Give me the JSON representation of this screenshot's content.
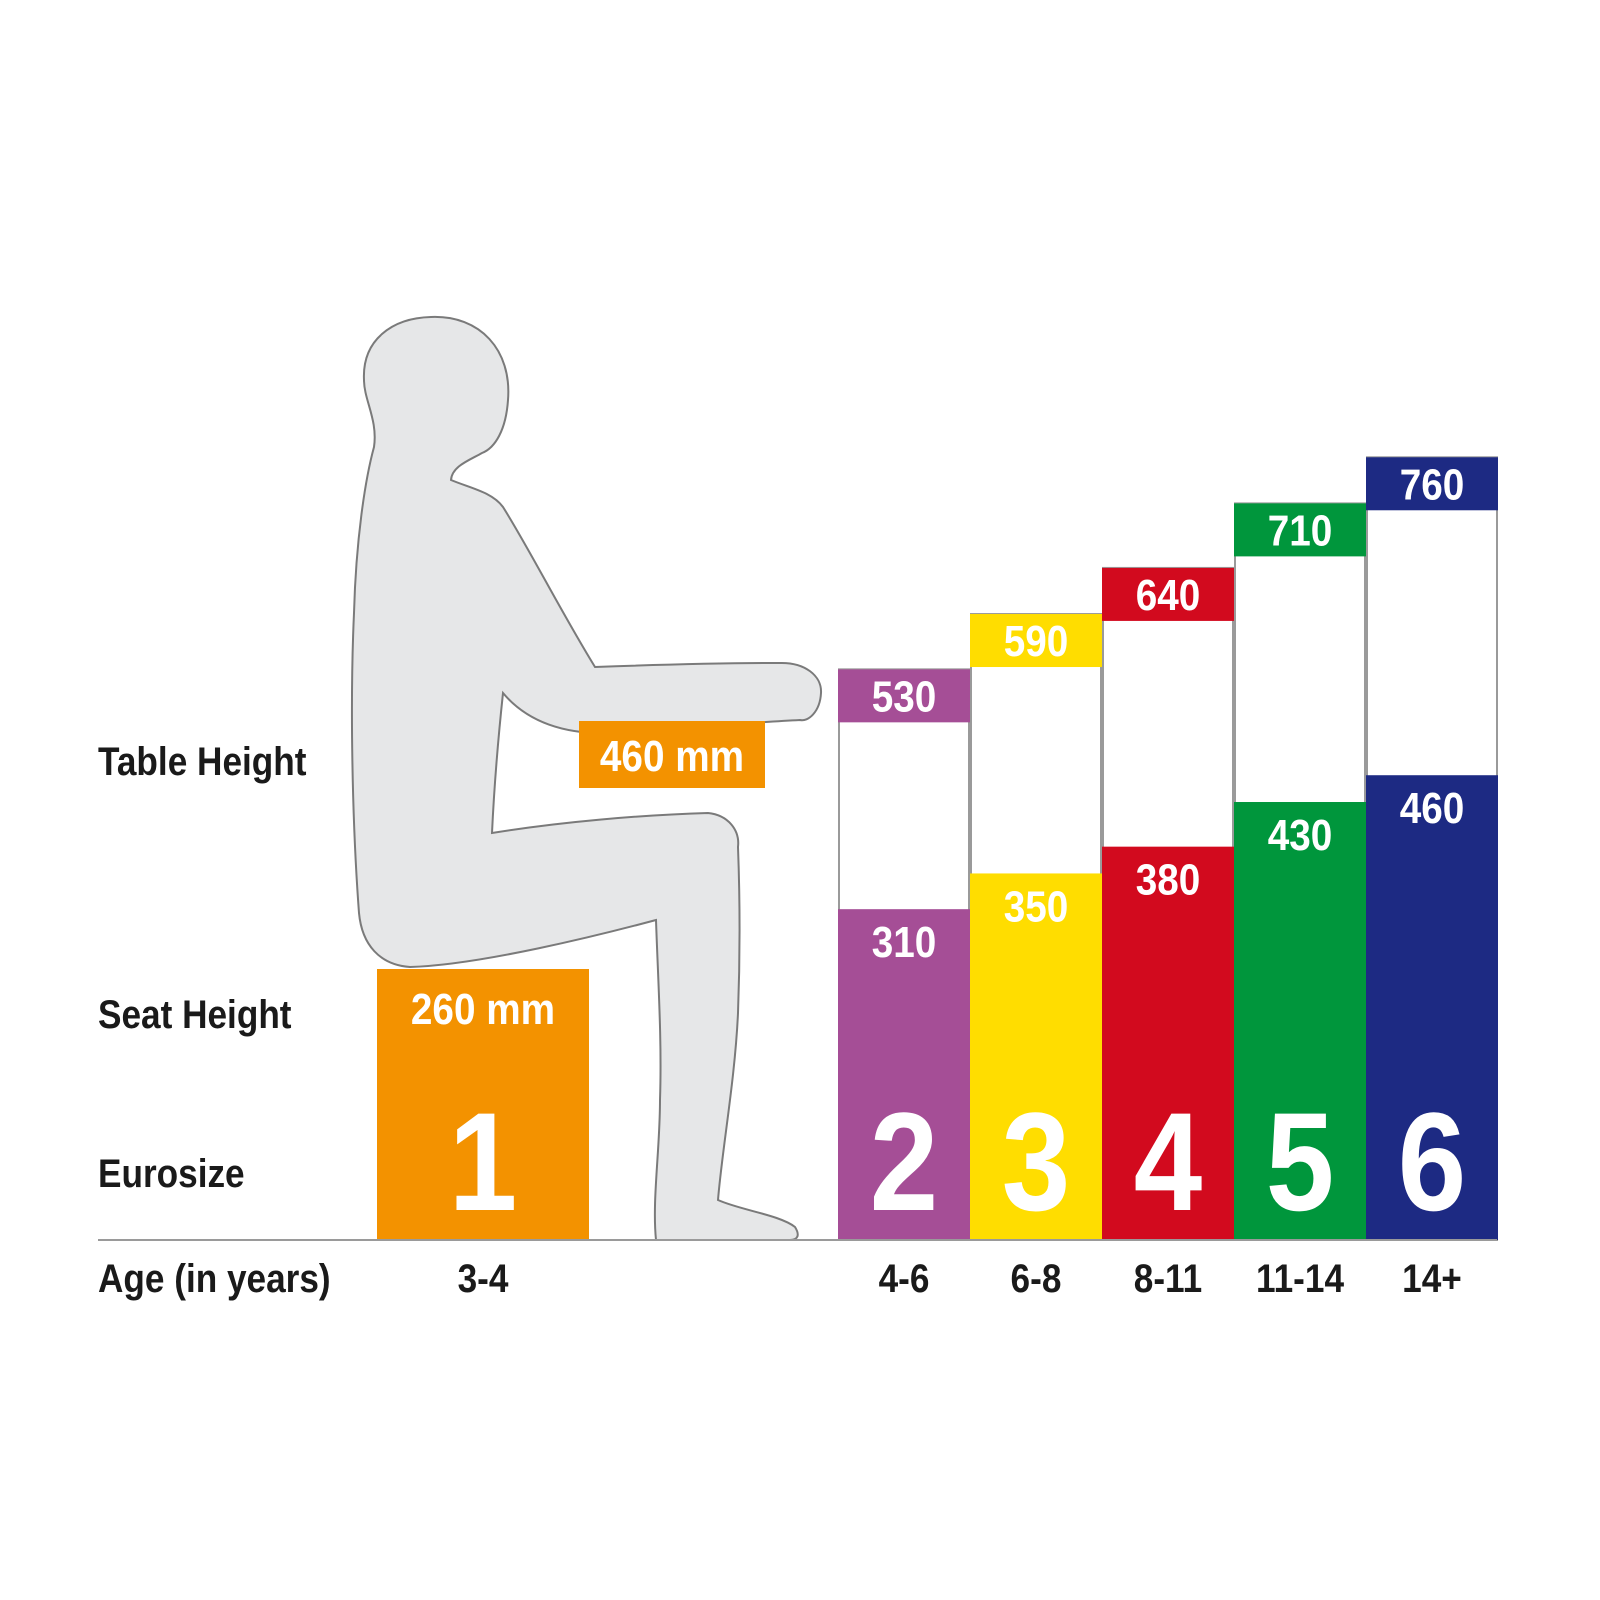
{
  "chart_data": {
    "type": "bar",
    "row_labels": {
      "table_height": "Table Height",
      "seat_height": "Seat Height",
      "eurosize": "Eurosize",
      "age": "Age (in years)"
    },
    "unit": "mm",
    "sizes": [
      {
        "eurosize": "1",
        "age": "3-4",
        "seat_height": 260,
        "table_height": 460,
        "seat_label": "260 mm",
        "table_label": "460 mm",
        "color": "#f39200"
      },
      {
        "eurosize": "2",
        "age": "4-6",
        "seat_height": 310,
        "table_height": 530,
        "seat_label": "310",
        "table_label": "530",
        "color": "#a54e96"
      },
      {
        "eurosize": "3",
        "age": "6-8",
        "seat_height": 350,
        "table_height": 590,
        "seat_label": "350",
        "table_label": "590",
        "color": "#ffdd00"
      },
      {
        "eurosize": "4",
        "age": "8-11",
        "seat_height": 380,
        "table_height": 640,
        "seat_label": "380",
        "table_label": "640",
        "color": "#d20a1e"
      },
      {
        "eurosize": "5",
        "age": "11-14",
        "seat_height": 430,
        "table_height": 710,
        "seat_label": "430",
        "table_label": "710",
        "color": "#00963c"
      },
      {
        "eurosize": "6",
        "age": "14+",
        "seat_height": 460,
        "table_height": 760,
        "seat_label": "460",
        "table_label": "760",
        "color": "#1d2a83"
      }
    ],
    "figure": "seated-child-silhouette"
  }
}
